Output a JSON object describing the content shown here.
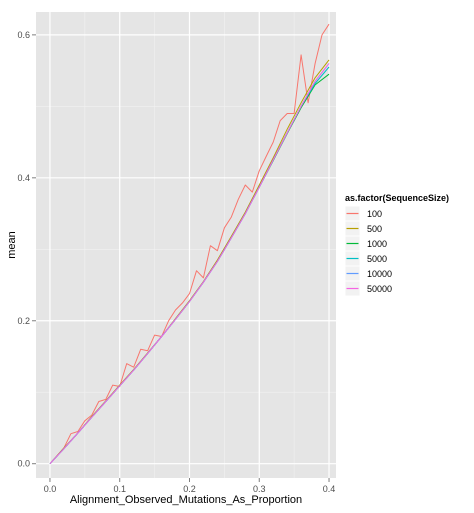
{
  "chart_data": {
    "type": "line",
    "xlabel": "Alignment_Observed_Mutations_As_Proportion",
    "ylabel": "mean",
    "xlim": [
      -0.02,
      0.41
    ],
    "ylim": [
      -0.02,
      0.632
    ],
    "x_ticks": [
      0.0,
      0.1,
      0.2,
      0.3,
      0.4
    ],
    "x_tick_labels": [
      "0.0",
      "0.1",
      "0.2",
      "0.3",
      "0.4"
    ],
    "y_ticks": [
      0.0,
      0.2,
      0.4,
      0.6
    ],
    "y_tick_labels": [
      "0.0",
      "0.2",
      "0.4",
      "0.6"
    ],
    "grid": true,
    "panel_background": "#e5e5e5",
    "legend": {
      "title": "as.factor(SequenceSize)",
      "position": "right"
    },
    "series": [
      {
        "name": "100",
        "color": "#F8766D",
        "points": [
          [
            0.0,
            0.0
          ],
          [
            0.01,
            0.011
          ],
          [
            0.02,
            0.022
          ],
          [
            0.03,
            0.042
          ],
          [
            0.04,
            0.045
          ],
          [
            0.05,
            0.06
          ],
          [
            0.06,
            0.068
          ],
          [
            0.07,
            0.087
          ],
          [
            0.08,
            0.09
          ],
          [
            0.09,
            0.11
          ],
          [
            0.1,
            0.108
          ],
          [
            0.11,
            0.14
          ],
          [
            0.12,
            0.135
          ],
          [
            0.13,
            0.16
          ],
          [
            0.14,
            0.158
          ],
          [
            0.15,
            0.18
          ],
          [
            0.16,
            0.178
          ],
          [
            0.17,
            0.2
          ],
          [
            0.18,
            0.215
          ],
          [
            0.19,
            0.225
          ],
          [
            0.2,
            0.238
          ],
          [
            0.21,
            0.27
          ],
          [
            0.22,
            0.26
          ],
          [
            0.23,
            0.305
          ],
          [
            0.24,
            0.298
          ],
          [
            0.25,
            0.33
          ],
          [
            0.26,
            0.345
          ],
          [
            0.27,
            0.37
          ],
          [
            0.28,
            0.39
          ],
          [
            0.29,
            0.38
          ],
          [
            0.3,
            0.41
          ],
          [
            0.31,
            0.43
          ],
          [
            0.32,
            0.45
          ],
          [
            0.33,
            0.48
          ],
          [
            0.34,
            0.49
          ],
          [
            0.35,
            0.49
          ],
          [
            0.36,
            0.572
          ],
          [
            0.37,
            0.505
          ],
          [
            0.38,
            0.56
          ],
          [
            0.39,
            0.6
          ],
          [
            0.4,
            0.615
          ]
        ]
      },
      {
        "name": "500",
        "color": "#B79F00",
        "points": [
          [
            0.0,
            0.0
          ],
          [
            0.02,
            0.022
          ],
          [
            0.04,
            0.043
          ],
          [
            0.06,
            0.066
          ],
          [
            0.08,
            0.088
          ],
          [
            0.1,
            0.11
          ],
          [
            0.12,
            0.132
          ],
          [
            0.14,
            0.155
          ],
          [
            0.16,
            0.178
          ],
          [
            0.18,
            0.203
          ],
          [
            0.2,
            0.228
          ],
          [
            0.22,
            0.255
          ],
          [
            0.24,
            0.285
          ],
          [
            0.26,
            0.318
          ],
          [
            0.28,
            0.352
          ],
          [
            0.3,
            0.39
          ],
          [
            0.32,
            0.428
          ],
          [
            0.34,
            0.468
          ],
          [
            0.36,
            0.505
          ],
          [
            0.38,
            0.54
          ],
          [
            0.4,
            0.565
          ]
        ]
      },
      {
        "name": "1000",
        "color": "#00BA38",
        "points": [
          [
            0.0,
            0.0
          ],
          [
            0.02,
            0.021
          ],
          [
            0.04,
            0.043
          ],
          [
            0.06,
            0.065
          ],
          [
            0.08,
            0.087
          ],
          [
            0.1,
            0.109
          ],
          [
            0.12,
            0.131
          ],
          [
            0.14,
            0.154
          ],
          [
            0.16,
            0.178
          ],
          [
            0.18,
            0.202
          ],
          [
            0.2,
            0.227
          ],
          [
            0.22,
            0.254
          ],
          [
            0.24,
            0.283
          ],
          [
            0.26,
            0.316
          ],
          [
            0.28,
            0.35
          ],
          [
            0.3,
            0.387
          ],
          [
            0.32,
            0.424
          ],
          [
            0.34,
            0.462
          ],
          [
            0.36,
            0.498
          ],
          [
            0.38,
            0.53
          ],
          [
            0.4,
            0.545
          ]
        ]
      },
      {
        "name": "5000",
        "color": "#00BFC4",
        "points": [
          [
            0.0,
            0.0
          ],
          [
            0.02,
            0.021
          ],
          [
            0.04,
            0.043
          ],
          [
            0.06,
            0.065
          ],
          [
            0.08,
            0.087
          ],
          [
            0.1,
            0.109
          ],
          [
            0.12,
            0.131
          ],
          [
            0.14,
            0.154
          ],
          [
            0.16,
            0.178
          ],
          [
            0.18,
            0.202
          ],
          [
            0.2,
            0.227
          ],
          [
            0.22,
            0.254
          ],
          [
            0.24,
            0.283
          ],
          [
            0.26,
            0.316
          ],
          [
            0.28,
            0.35
          ],
          [
            0.3,
            0.387
          ],
          [
            0.32,
            0.425
          ],
          [
            0.34,
            0.463
          ],
          [
            0.36,
            0.5
          ],
          [
            0.38,
            0.532
          ],
          [
            0.4,
            0.555
          ]
        ]
      },
      {
        "name": "10000",
        "color": "#619CFF",
        "points": [
          [
            0.0,
            0.0
          ],
          [
            0.02,
            0.021
          ],
          [
            0.04,
            0.043
          ],
          [
            0.06,
            0.065
          ],
          [
            0.08,
            0.087
          ],
          [
            0.1,
            0.109
          ],
          [
            0.12,
            0.131
          ],
          [
            0.14,
            0.154
          ],
          [
            0.16,
            0.178
          ],
          [
            0.18,
            0.202
          ],
          [
            0.2,
            0.227
          ],
          [
            0.22,
            0.254
          ],
          [
            0.24,
            0.283
          ],
          [
            0.26,
            0.316
          ],
          [
            0.28,
            0.35
          ],
          [
            0.3,
            0.387
          ],
          [
            0.32,
            0.425
          ],
          [
            0.34,
            0.463
          ],
          [
            0.36,
            0.5
          ],
          [
            0.38,
            0.535
          ],
          [
            0.4,
            0.56
          ]
        ]
      },
      {
        "name": "50000",
        "color": "#F564E3",
        "points": [
          [
            0.0,
            0.0
          ],
          [
            0.02,
            0.021
          ],
          [
            0.04,
            0.043
          ],
          [
            0.06,
            0.065
          ],
          [
            0.08,
            0.087
          ],
          [
            0.1,
            0.109
          ],
          [
            0.12,
            0.131
          ],
          [
            0.14,
            0.154
          ],
          [
            0.16,
            0.178
          ],
          [
            0.18,
            0.202
          ],
          [
            0.2,
            0.227
          ],
          [
            0.22,
            0.254
          ],
          [
            0.24,
            0.283
          ],
          [
            0.26,
            0.316
          ],
          [
            0.28,
            0.35
          ],
          [
            0.3,
            0.387
          ],
          [
            0.32,
            0.425
          ],
          [
            0.34,
            0.463
          ],
          [
            0.36,
            0.5
          ],
          [
            0.38,
            0.535
          ],
          [
            0.4,
            0.56
          ]
        ]
      }
    ]
  }
}
